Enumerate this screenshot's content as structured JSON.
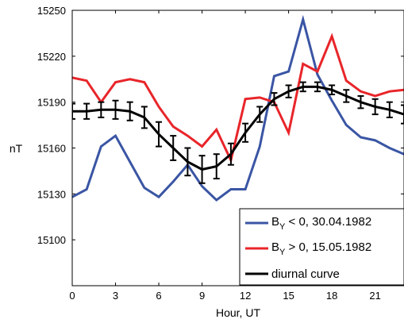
{
  "chart_data": {
    "type": "line",
    "xlabel": "Hour, UT",
    "ylabel": "nT",
    "xlim": [
      0,
      23
    ],
    "ylim": [
      15070,
      15250
    ],
    "xticks": [
      0,
      3,
      6,
      9,
      12,
      15,
      18,
      21
    ],
    "yticks": [
      15100,
      15130,
      15160,
      15190,
      15220,
      15250
    ],
    "grid": false,
    "legend_position": "bottom-right",
    "x": [
      0,
      1,
      2,
      3,
      4,
      5,
      6,
      7,
      8,
      9,
      10,
      11,
      12,
      13,
      14,
      15,
      16,
      17,
      18,
      19,
      20,
      21,
      22,
      23
    ],
    "series": [
      {
        "name_main": "B",
        "name_sub": "Y",
        "name_rest": " < 0, 30.04.1982",
        "color": "#3a55a4",
        "values": [
          15128,
          15133,
          15161,
          15168,
          15151,
          15134,
          15128,
          15138,
          15149,
          15135,
          15126,
          15133,
          15133,
          15161,
          15207,
          15210,
          15244,
          15208,
          15191,
          15175,
          15167,
          15165,
          15160,
          15156
        ]
      },
      {
        "name_main": "B",
        "name_sub": "Y",
        "name_rest": " > 0, 15.05.1982",
        "color": "#e8252a",
        "values": [
          15206,
          15204,
          15190,
          15203,
          15205,
          15203,
          15187,
          15174,
          15168,
          15161,
          15172,
          15152,
          15192,
          15193,
          15190,
          15170,
          15215,
          15210,
          15233,
          15204,
          15197,
          15194,
          15197,
          15198
        ]
      },
      {
        "name": "diurnal curve",
        "color": "#000000",
        "values": [
          15184,
          15184,
          15185,
          15185,
          15184,
          15180,
          15169,
          15160,
          15151,
          15146,
          15148,
          15156,
          15170,
          15182,
          15192,
          15197,
          15200,
          15200,
          15198,
          15194,
          15190,
          15187,
          15185,
          15182
        ],
        "error": [
          5,
          5,
          5,
          6,
          6,
          7,
          8,
          8,
          9,
          9,
          8,
          7,
          6,
          5,
          4,
          4,
          3,
          3,
          3,
          4,
          4,
          5,
          5,
          6
        ]
      }
    ]
  }
}
